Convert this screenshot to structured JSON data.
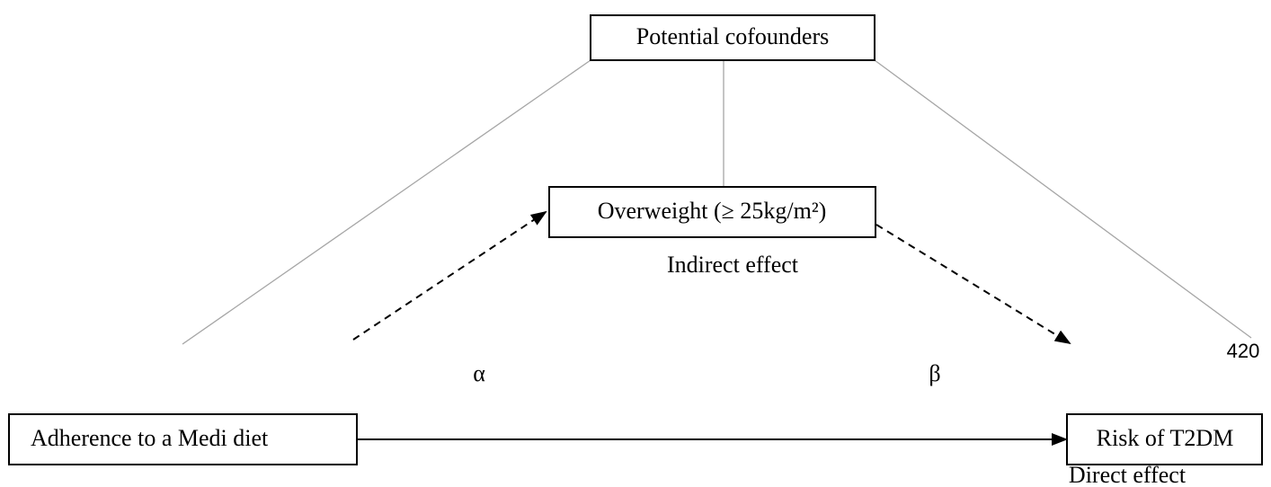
{
  "nodes": [
    {
      "label": "Potential cofounders"
    },
    {
      "label": "Overweight (≥ 25kg/m²)"
    },
    {
      "label": "Adherence to a Medi diet"
    },
    {
      "label": "Risk of T2DM"
    }
  ],
  "edge_labels": {
    "indirect": "Indirect effect",
    "alpha": "α",
    "beta": "β",
    "direct": "Direct effect"
  },
  "page_number": "420"
}
